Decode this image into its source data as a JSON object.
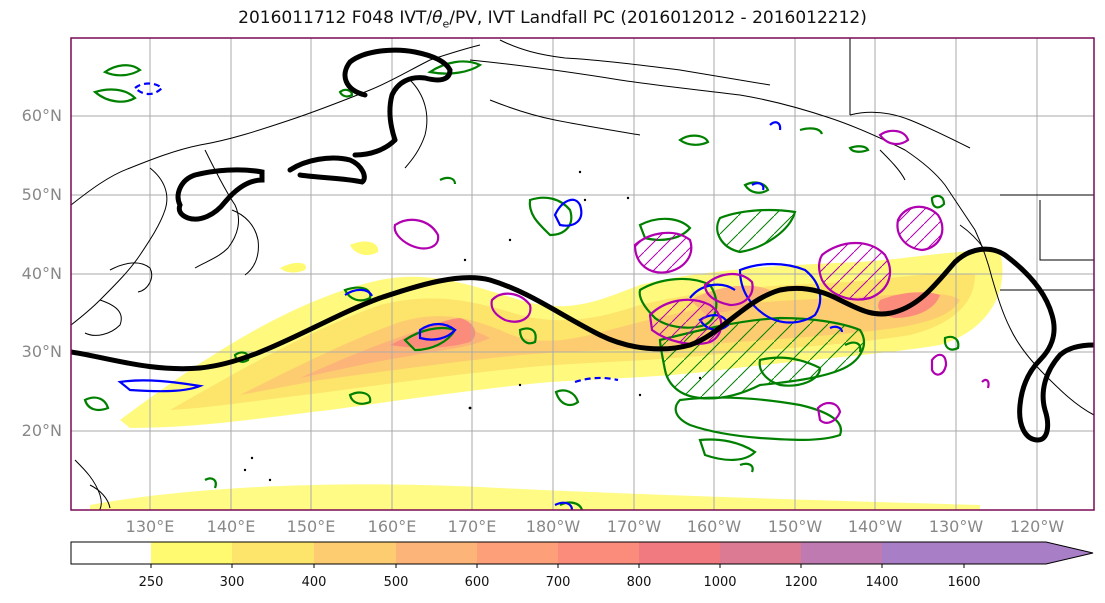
{
  "title": {
    "prefix": "2016011712 F048 IVT/",
    "theta": "θ",
    "theta_sub": "e",
    "suffix": "/PV, IVT Landfall PC (2016012012 - 2016012212)"
  },
  "map": {
    "lat_labels": [
      "60°N",
      "50°N",
      "40°N",
      "30°N",
      "20°N"
    ],
    "lon_labels": [
      "130°E",
      "140°E",
      "150°E",
      "160°E",
      "170°E",
      "180°W",
      "170°W",
      "160°W",
      "150°W",
      "140°W",
      "130°W",
      "120°W"
    ],
    "colors": {
      "coast": "#000000",
      "grid": "#aaaaaa",
      "theta_e": "#008000",
      "pv": "#0000ff",
      "landfall_pc": "#b000b0",
      "contour_thick": "#000000"
    }
  },
  "colorbar": {
    "ticks": [
      "250",
      "300",
      "400",
      "500",
      "600",
      "700",
      "800",
      "1000",
      "1200",
      "1400",
      "1600"
    ],
    "colors": [
      "#ffffff",
      "#fffa70",
      "#fde46a",
      "#fdcc70",
      "#fdb478",
      "#fda07a",
      "#fb8c7c",
      "#f07a80",
      "#dc7a94",
      "#c07ab2",
      "#a87ec6"
    ]
  }
}
